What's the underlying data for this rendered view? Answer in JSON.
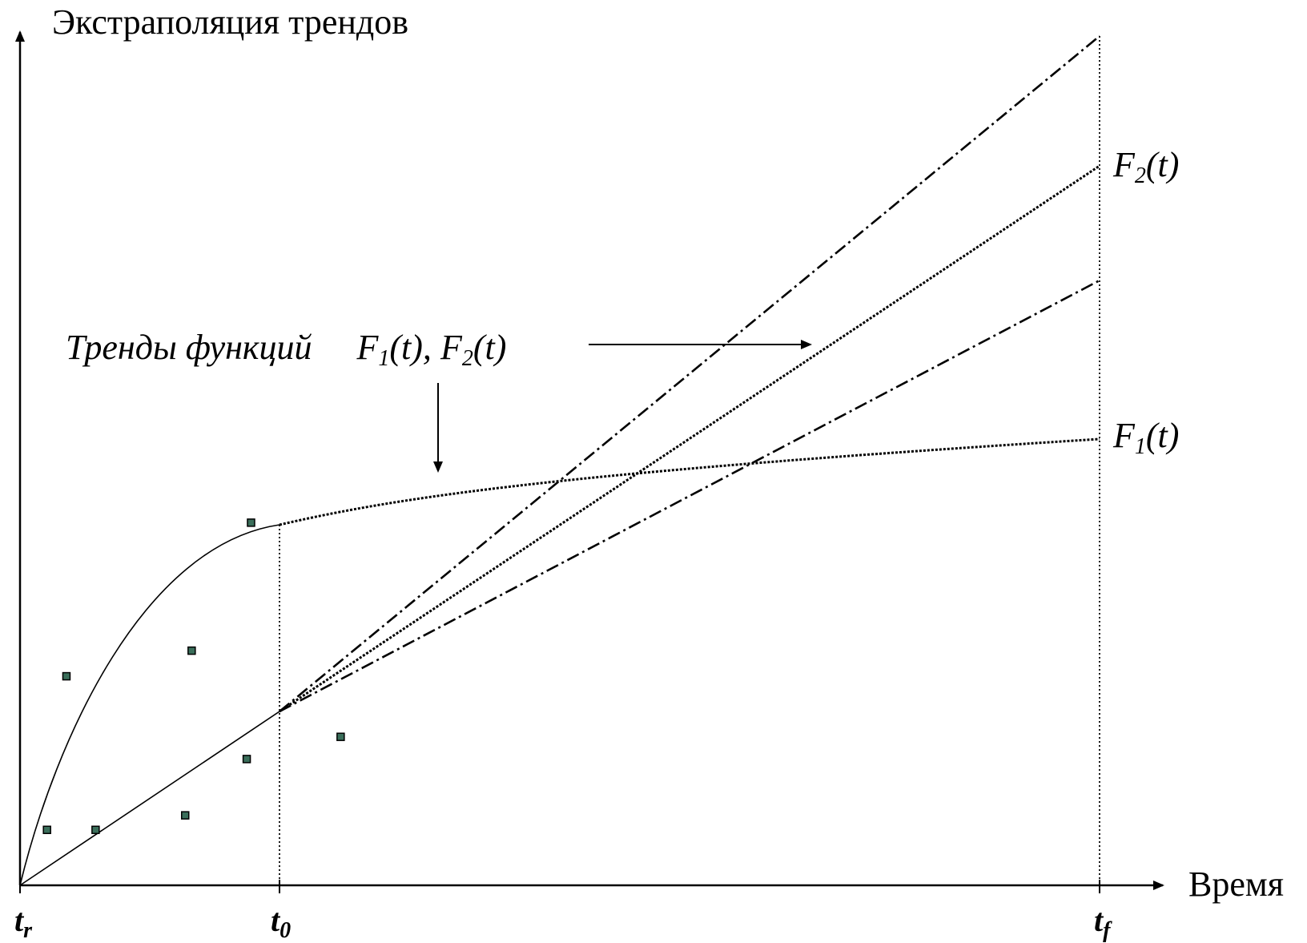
{
  "diagram": {
    "y_axis_label": "Экстраполяция трендов",
    "x_axis_label": "Время",
    "annotation": {
      "main": "Тренды функций",
      "f1": "F",
      "f1_sub": "1",
      "f1_arg": "(t), ",
      "f2": "F",
      "f2_sub": "2",
      "f2_arg": "(t)"
    },
    "curve_labels": {
      "f1": "F",
      "f1_sub": "1",
      "f1_arg": "(t)",
      "f2": "F",
      "f2_sub": "2",
      "f2_arg": "(t)"
    },
    "ticks": {
      "tr": "t",
      "tr_sub": "r",
      "t0": "t",
      "t0_sub": "0",
      "tf": "t",
      "tf_sub": "f"
    },
    "data_points": [
      [
        0.025,
        0.065
      ],
      [
        0.07,
        0.065
      ],
      [
        0.043,
        0.245
      ],
      [
        0.153,
        0.082
      ],
      [
        0.159,
        0.275
      ],
      [
        0.21,
        0.148
      ],
      [
        0.214,
        0.425
      ],
      [
        0.297,
        0.174
      ]
    ],
    "colors": {
      "axis": "#000000",
      "marker_fill": "#3a6e5a",
      "marker_stroke": "#000000"
    }
  }
}
